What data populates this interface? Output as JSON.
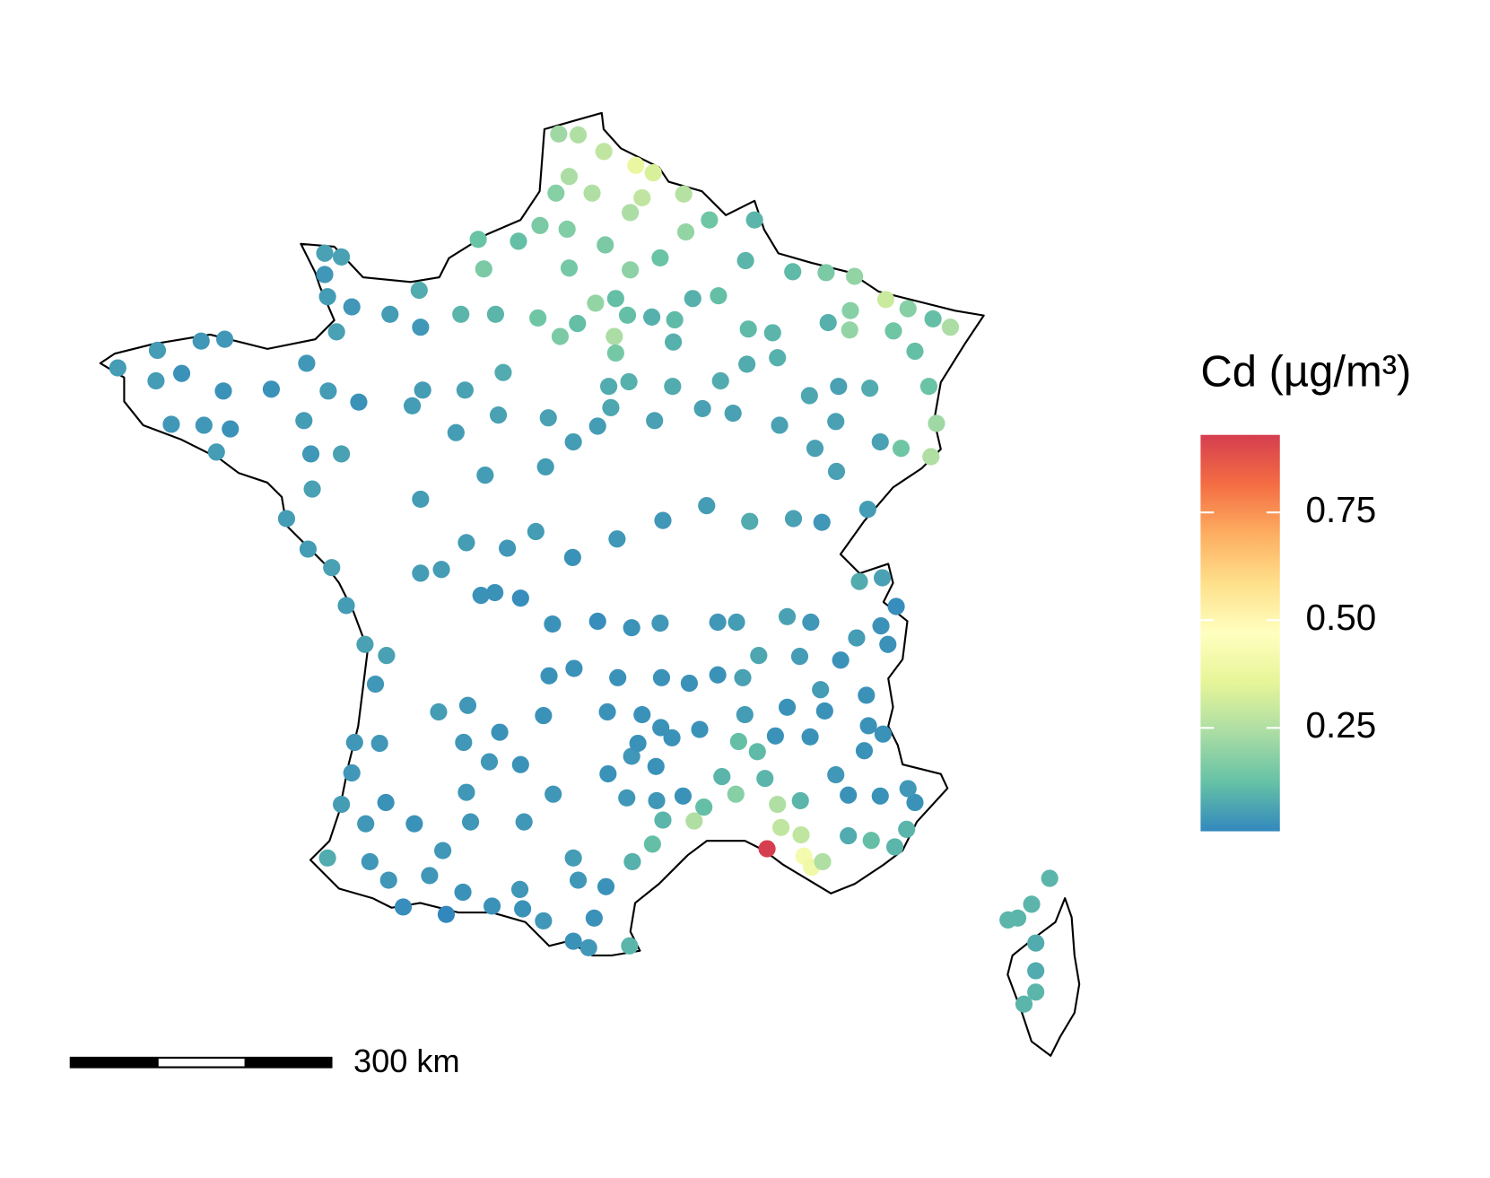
{
  "chart_data": {
    "type": "map",
    "legend_title": "Cd (µg/m³)",
    "colorlim": [
      0.01,
      0.93
    ],
    "colorticks": [
      0.25,
      {
        "value": 0.5,
        "label": "0.50"
      },
      0.75
    ],
    "colors": [
      "#3288bd",
      "#66c2a5",
      "#abdda4",
      "#e6f598",
      "#ffffbf",
      "#fee08b",
      "#fdae61",
      "#f46d43",
      "#d53e4f"
    ],
    "scale_bar": "300 km",
    "points": [
      [
        2.37,
        51.03,
        0.22
      ],
      [
        2.65,
        51.02,
        0.25
      ],
      [
        3.02,
        50.84,
        0.28
      ],
      [
        3.48,
        50.69,
        0.38
      ],
      [
        3.73,
        50.61,
        0.33
      ],
      [
        2.52,
        50.57,
        0.24
      ],
      [
        2.33,
        50.39,
        0.18
      ],
      [
        2.85,
        50.39,
        0.25
      ],
      [
        3.57,
        50.34,
        0.28
      ],
      [
        4.17,
        50.38,
        0.26
      ],
      [
        4.54,
        50.1,
        0.14
      ],
      [
        5.19,
        50.1,
        0.1
      ],
      [
        3.4,
        50.18,
        0.24
      ],
      [
        4.2,
        49.97,
        0.2
      ],
      [
        3.04,
        49.83,
        0.16
      ],
      [
        2.49,
        50.0,
        0.17
      ],
      [
        2.1,
        50.04,
        0.16
      ],
      [
        1.21,
        49.89,
        0.13
      ],
      [
        1.79,
        49.87,
        0.12
      ],
      [
        1.29,
        49.57,
        0.16
      ],
      [
        2.52,
        49.58,
        0.15
      ],
      [
        3.4,
        49.56,
        0.19
      ],
      [
        3.83,
        49.69,
        0.13
      ],
      [
        5.06,
        49.66,
        0.1
      ],
      [
        5.74,
        49.54,
        0.11
      ],
      [
        6.22,
        49.53,
        0.16
      ],
      [
        6.63,
        49.49,
        0.2
      ],
      [
        7.08,
        49.24,
        0.3
      ],
      [
        7.4,
        49.14,
        0.18
      ],
      [
        7.76,
        49.03,
        0.12
      ],
      [
        8.01,
        48.94,
        0.24
      ],
      [
        6.57,
        49.12,
        0.18
      ],
      [
        6.25,
        48.99,
        0.09
      ],
      [
        6.56,
        48.91,
        0.2
      ],
      [
        7.19,
        48.9,
        0.14
      ],
      [
        7.5,
        48.68,
        0.12
      ],
      [
        7.7,
        48.3,
        0.13
      ],
      [
        7.81,
        47.9,
        0.22
      ],
      [
        7.73,
        47.54,
        0.25
      ],
      [
        7.3,
        47.63,
        0.14
      ],
      [
        7.0,
        47.7,
        0.06
      ],
      [
        2.9,
        49.2,
        0.2
      ],
      [
        3.17,
        48.84,
        0.24
      ],
      [
        3.19,
        48.66,
        0.15
      ],
      [
        2.64,
        48.98,
        0.12
      ],
      [
        2.07,
        49.04,
        0.14
      ],
      [
        2.39,
        48.84,
        0.16
      ],
      [
        3.36,
        49.07,
        0.12
      ],
      [
        4.3,
        49.25,
        0.09
      ],
      [
        4.67,
        49.28,
        0.12
      ],
      [
        -3.98,
        48.5,
        0.05
      ],
      [
        -3.41,
        48.69,
        0.05
      ],
      [
        -2.78,
        48.79,
        0.04
      ],
      [
        -2.44,
        48.81,
        0.04
      ],
      [
        -3.06,
        48.44,
        0.03
      ],
      [
        -3.43,
        48.36,
        0.05
      ],
      [
        -2.46,
        48.25,
        0.03
      ],
      [
        -1.77,
        48.27,
        0.03
      ],
      [
        -3.21,
        47.89,
        0.04
      ],
      [
        -2.74,
        47.88,
        0.04
      ],
      [
        -2.36,
        47.84,
        0.03
      ],
      [
        -2.56,
        47.59,
        0.05
      ],
      [
        -1.0,
        49.74,
        0.06
      ],
      [
        -0.76,
        49.7,
        0.06
      ],
      [
        -1.0,
        49.51,
        0.04
      ],
      [
        -0.96,
        49.27,
        0.05
      ],
      [
        -0.61,
        49.16,
        0.04
      ],
      [
        -0.83,
        48.89,
        0.06
      ],
      [
        -0.06,
        49.08,
        0.05
      ],
      [
        0.36,
        49.34,
        0.08
      ],
      [
        0.38,
        48.94,
        0.04
      ],
      [
        -1.26,
        48.55,
        0.04
      ],
      [
        -0.95,
        48.25,
        0.05
      ],
      [
        -0.51,
        48.13,
        0.03
      ],
      [
        -1.3,
        47.93,
        0.05
      ],
      [
        -1.2,
        47.57,
        0.04
      ],
      [
        -0.76,
        47.57,
        0.06
      ],
      [
        -1.55,
        46.87,
        0.05
      ],
      [
        -1.18,
        47.19,
        0.06
      ],
      [
        -1.24,
        46.54,
        0.05
      ],
      [
        -0.9,
        46.34,
        0.06
      ],
      [
        -0.69,
        45.93,
        0.05
      ],
      [
        -0.42,
        45.51,
        0.06
      ],
      [
        -0.27,
        45.08,
        0.04
      ],
      [
        -0.11,
        45.39,
        0.06
      ],
      [
        -0.57,
        44.45,
        0.04
      ],
      [
        -0.76,
        43.78,
        0.05
      ],
      [
        -0.96,
        43.2,
        0.08
      ],
      [
        -0.35,
        43.16,
        0.04
      ],
      [
        0.13,
        42.67,
        0.02
      ],
      [
        0.75,
        42.59,
        0.01
      ],
      [
        1.41,
        42.68,
        0.03
      ],
      [
        1.85,
        42.65,
        0.03
      ],
      [
        2.15,
        42.52,
        0.04
      ],
      [
        2.58,
        42.3,
        0.03
      ],
      [
        2.8,
        42.23,
        0.04
      ],
      [
        3.39,
        42.25,
        0.1
      ],
      [
        2.88,
        42.55,
        0.03
      ],
      [
        0.38,
        47.08,
        0.05
      ],
      [
        0.89,
        47.8,
        0.05
      ],
      [
        1.31,
        47.34,
        0.05
      ],
      [
        2.18,
        47.43,
        0.05
      ],
      [
        2.58,
        47.7,
        0.05
      ],
      [
        2.93,
        47.87,
        0.05
      ],
      [
        3.75,
        47.93,
        0.06
      ],
      [
        4.44,
        48.06,
        0.06
      ],
      [
        4.88,
        48.01,
        0.06
      ],
      [
        5.55,
        47.88,
        0.06
      ],
      [
        6.06,
        47.63,
        0.06
      ],
      [
        6.37,
        47.38,
        0.06
      ],
      [
        6.82,
        46.97,
        0.05
      ],
      [
        6.16,
        46.83,
        0.04
      ],
      [
        5.75,
        46.87,
        0.06
      ],
      [
        5.12,
        46.84,
        0.08
      ],
      [
        4.5,
        47.01,
        0.05
      ],
      [
        3.87,
        46.85,
        0.04
      ],
      [
        3.21,
        46.65,
        0.04
      ],
      [
        2.57,
        46.45,
        0.03
      ],
      [
        2.04,
        46.73,
        0.05
      ],
      [
        1.63,
        46.55,
        0.04
      ],
      [
        1.04,
        46.61,
        0.05
      ],
      [
        0.68,
        46.32,
        0.05
      ],
      [
        0.38,
        46.28,
        0.05
      ],
      [
        1.25,
        46.04,
        0.03
      ],
      [
        1.45,
        46.07,
        0.03
      ],
      [
        1.82,
        46.01,
        0.02
      ],
      [
        2.28,
        45.73,
        0.03
      ],
      [
        2.93,
        45.76,
        0.02
      ],
      [
        3.42,
        45.69,
        0.03
      ],
      [
        3.83,
        45.74,
        0.04
      ],
      [
        4.66,
        45.75,
        0.04
      ],
      [
        4.93,
        45.75,
        0.05
      ],
      [
        5.66,
        45.81,
        0.06
      ],
      [
        6.0,
        45.75,
        0.04
      ],
      [
        6.7,
        46.19,
        0.08
      ],
      [
        7.03,
        46.23,
        0.06
      ],
      [
        7.23,
        45.92,
        0.02
      ],
      [
        7.01,
        45.71,
        0.03
      ],
      [
        6.66,
        45.58,
        0.05
      ],
      [
        7.11,
        45.51,
        0.03
      ],
      [
        6.43,
        45.34,
        0.03
      ],
      [
        6.14,
        45.02,
        0.05
      ],
      [
        6.2,
        44.79,
        0.03
      ],
      [
        6.8,
        44.96,
        0.03
      ],
      [
        6.83,
        44.63,
        0.03
      ],
      [
        7.04,
        44.54,
        0.03
      ],
      [
        6.77,
        44.36,
        0.03
      ],
      [
        5.99,
        44.51,
        0.03
      ],
      [
        5.66,
        44.83,
        0.03
      ],
      [
        5.25,
        45.39,
        0.07
      ],
      [
        5.84,
        45.38,
        0.05
      ],
      [
        5.05,
        44.75,
        0.05
      ],
      [
        5.49,
        44.52,
        0.03
      ],
      [
        4.96,
        44.46,
        0.12
      ],
      [
        5.23,
        44.35,
        0.11
      ],
      [
        4.72,
        44.08,
        0.1
      ],
      [
        4.92,
        43.89,
        0.18
      ],
      [
        5.34,
        44.06,
        0.1
      ],
      [
        5.52,
        43.78,
        0.25
      ],
      [
        5.85,
        43.82,
        0.1
      ],
      [
        5.57,
        43.53,
        0.28
      ],
      [
        5.86,
        43.45,
        0.28
      ],
      [
        5.37,
        43.3,
        0.93
      ],
      [
        5.9,
        43.22,
        0.42
      ],
      [
        6.01,
        43.1,
        0.4
      ],
      [
        6.17,
        43.16,
        0.25
      ],
      [
        6.54,
        43.44,
        0.08
      ],
      [
        6.87,
        43.39,
        0.12
      ],
      [
        7.21,
        43.32,
        0.1
      ],
      [
        7.38,
        43.51,
        0.1
      ],
      [
        7.5,
        43.8,
        0.03
      ],
      [
        7.4,
        43.95,
        0.04
      ],
      [
        7.0,
        43.87,
        0.03
      ],
      [
        6.54,
        43.88,
        0.03
      ],
      [
        6.36,
        44.1,
        0.04
      ],
      [
        4.32,
        43.6,
        0.25
      ],
      [
        4.46,
        43.75,
        0.12
      ],
      [
        3.87,
        43.61,
        0.1
      ],
      [
        3.72,
        43.35,
        0.12
      ],
      [
        3.43,
        43.16,
        0.09
      ],
      [
        3.05,
        42.89,
        0.03
      ],
      [
        2.58,
        43.2,
        0.05
      ],
      [
        2.65,
        42.96,
        0.04
      ],
      [
        1.81,
        42.86,
        0.04
      ],
      [
        0.99,
        42.83,
        0.03
      ],
      [
        0.51,
        43.01,
        0.04
      ],
      [
        -0.08,
        42.96,
        0.04
      ],
      [
        3.35,
        43.85,
        0.04
      ],
      [
        3.78,
        43.82,
        0.04
      ],
      [
        4.16,
        43.87,
        0.03
      ],
      [
        3.42,
        44.3,
        0.04
      ],
      [
        4.0,
        44.5,
        0.03
      ],
      [
        4.4,
        44.59,
        0.03
      ],
      [
        3.51,
        44.44,
        0.03
      ],
      [
        3.77,
        44.19,
        0.03
      ],
      [
        3.08,
        44.11,
        0.03
      ],
      [
        2.29,
        43.89,
        0.04
      ],
      [
        1.82,
        44.21,
        0.03
      ],
      [
        1.37,
        44.24,
        0.04
      ],
      [
        1.0,
        44.45,
        0.04
      ],
      [
        0.64,
        44.78,
        0.05
      ],
      [
        1.06,
        44.85,
        0.04
      ],
      [
        1.52,
        44.56,
        0.03
      ],
      [
        2.15,
        44.74,
        0.03
      ],
      [
        3.07,
        44.78,
        0.03
      ],
      [
        3.57,
        44.75,
        0.03
      ],
      [
        3.84,
        44.61,
        0.03
      ],
      [
        2.23,
        45.17,
        0.03
      ],
      [
        2.59,
        45.25,
        0.03
      ],
      [
        3.22,
        45.15,
        0.03
      ],
      [
        3.85,
        45.15,
        0.03
      ],
      [
        4.25,
        45.09,
        0.03
      ],
      [
        4.66,
        45.18,
        0.03
      ],
      [
        5.02,
        45.15,
        0.06
      ],
      [
        -0.21,
        44.44,
        0.04
      ],
      [
        -0.61,
        44.12,
        0.04
      ],
      [
        -0.12,
        43.8,
        0.03
      ],
      [
        0.29,
        43.57,
        0.03
      ],
      [
        0.7,
        43.28,
        0.04
      ],
      [
        1.1,
        43.59,
        0.04
      ],
      [
        1.87,
        43.59,
        0.04
      ],
      [
        1.04,
        43.91,
        0.04
      ],
      [
        -0.41,
        43.57,
        0.04
      ],
      [
        1.5,
        47.99,
        0.06
      ],
      [
        2.22,
        47.96,
        0.06
      ],
      [
        3.12,
        48.07,
        0.07
      ],
      [
        3.09,
        48.3,
        0.08
      ],
      [
        3.38,
        48.35,
        0.09
      ],
      [
        4.01,
        48.3,
        0.08
      ],
      [
        4.7,
        48.36,
        0.08
      ],
      [
        5.08,
        48.54,
        0.08
      ],
      [
        5.52,
        48.61,
        0.09
      ],
      [
        5.98,
        48.2,
        0.07
      ],
      [
        6.36,
        47.92,
        0.06
      ],
      [
        6.4,
        48.3,
        0.06
      ],
      [
        6.85,
        48.28,
        0.08
      ],
      [
        5.1,
        48.92,
        0.11
      ],
      [
        5.45,
        48.88,
        0.1
      ],
      [
        1.57,
        48.45,
        0.08
      ],
      [
        1.02,
        48.26,
        0.06
      ],
      [
        0.41,
        48.26,
        0.05
      ],
      [
        0.26,
        48.09,
        0.05
      ],
      [
        0.96,
        49.08,
        0.1
      ],
      [
        1.46,
        49.08,
        0.1
      ],
      [
        4.02,
        48.78,
        0.09
      ],
      [
        4.04,
        49.02,
        0.11
      ],
      [
        3.71,
        49.05,
        0.09
      ],
      [
        3.19,
        49.25,
        0.12
      ],
      [
        9.44,
        42.98,
        0.1
      ],
      [
        9.18,
        42.7,
        0.1
      ],
      [
        8.98,
        42.55,
        0.1
      ],
      [
        8.84,
        42.53,
        0.1
      ],
      [
        9.24,
        42.28,
        0.08
      ],
      [
        9.24,
        41.98,
        0.08
      ],
      [
        9.24,
        41.75,
        0.1
      ],
      [
        9.07,
        41.62,
        0.1
      ]
    ]
  }
}
